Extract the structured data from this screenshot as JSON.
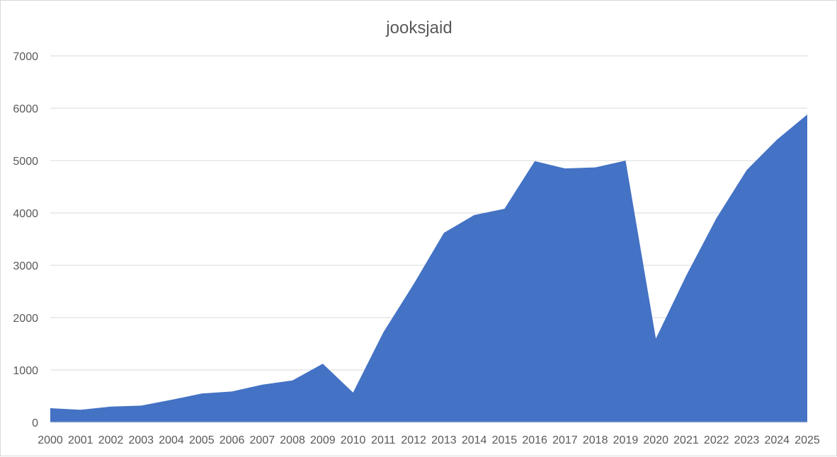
{
  "chart_data": {
    "type": "area",
    "title": "jooksjaid",
    "xlabel": "",
    "ylabel": "",
    "ylim": [
      0,
      7000
    ],
    "yticks": [
      0,
      1000,
      2000,
      3000,
      4000,
      5000,
      6000,
      7000
    ],
    "grid": true,
    "legend": "none",
    "color": "#4472c4",
    "categories": [
      "2000",
      "2001",
      "2002",
      "2003",
      "2004",
      "2005",
      "2006",
      "2007",
      "2008",
      "2009",
      "2010",
      "2011",
      "2012",
      "2013",
      "2014",
      "2015",
      "2016",
      "2017",
      "2018",
      "2019",
      "2020",
      "2021",
      "2022",
      "2023",
      "2024",
      "2025"
    ],
    "values": [
      270,
      240,
      300,
      320,
      430,
      550,
      590,
      720,
      800,
      1120,
      570,
      1720,
      2640,
      3620,
      3960,
      4080,
      4990,
      4850,
      4870,
      5000,
      1600,
      2800,
      3900,
      4820,
      5400,
      5880
    ]
  }
}
